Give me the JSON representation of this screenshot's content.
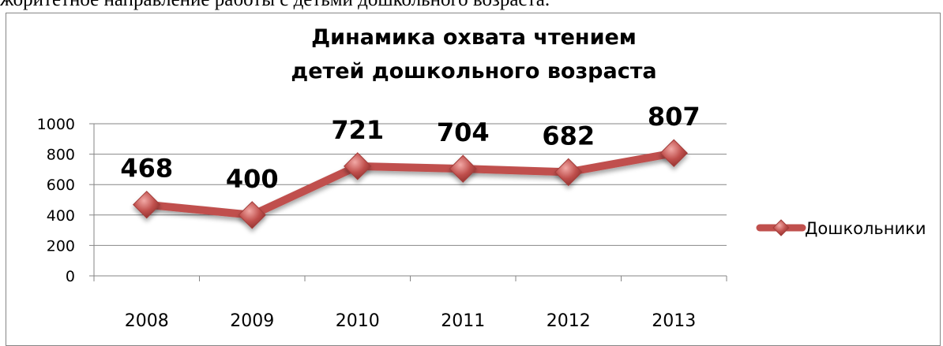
{
  "page_fragment_text": "жоритетное направление работы с детьми дошкольного возраста.",
  "chart_data": {
    "type": "line",
    "title_lines": [
      "Динамика  охвата  чтением",
      "детей дошкольного  возраста"
    ],
    "categories": [
      "2008",
      "2009",
      "2010",
      "2011",
      "2012",
      "2013"
    ],
    "series": [
      {
        "name": "Дошкольники",
        "values": [
          468,
          400,
          721,
          704,
          682,
          807
        ],
        "color": "#C0504D",
        "marker": "diamond"
      }
    ],
    "ylim": [
      0,
      1000
    ],
    "yticks": [
      "0",
      "200",
      "400",
      "600",
      "800",
      "1000"
    ],
    "grid": true,
    "legend_position": "right",
    "data_labels": true
  }
}
